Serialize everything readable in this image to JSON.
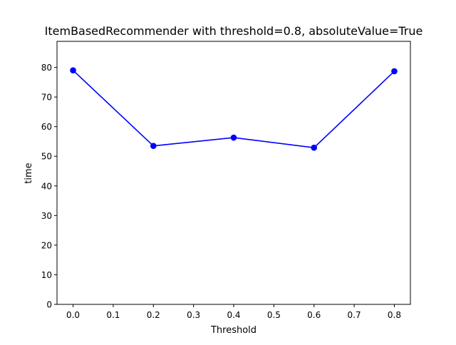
{
  "chart_data": {
    "type": "line",
    "title": "ItemBasedRecommender with threshold=0.8, absoluteValue=True",
    "xlabel": "Threshold",
    "ylabel": "time",
    "x": [
      0.0,
      0.2,
      0.4,
      0.6,
      0.8
    ],
    "series": [
      {
        "values": [
          79.0,
          53.5,
          56.3,
          52.9,
          78.7
        ],
        "color": "#0000ff",
        "marker": "circle"
      }
    ],
    "xlim": [
      -0.04,
      0.84
    ],
    "ylim": [
      0,
      88.8
    ],
    "xticks": [
      "0.0",
      "0.1",
      "0.2",
      "0.3",
      "0.4",
      "0.5",
      "0.6",
      "0.7",
      "0.8"
    ],
    "xtick_values": [
      0.0,
      0.1,
      0.2,
      0.3,
      0.4,
      0.5,
      0.6,
      0.7,
      0.8
    ],
    "yticks": [
      "0",
      "10",
      "20",
      "30",
      "40",
      "50",
      "60",
      "70",
      "80"
    ],
    "ytick_values": [
      0,
      10,
      20,
      30,
      40,
      50,
      60,
      70,
      80
    ],
    "grid": false,
    "legend": "none"
  }
}
